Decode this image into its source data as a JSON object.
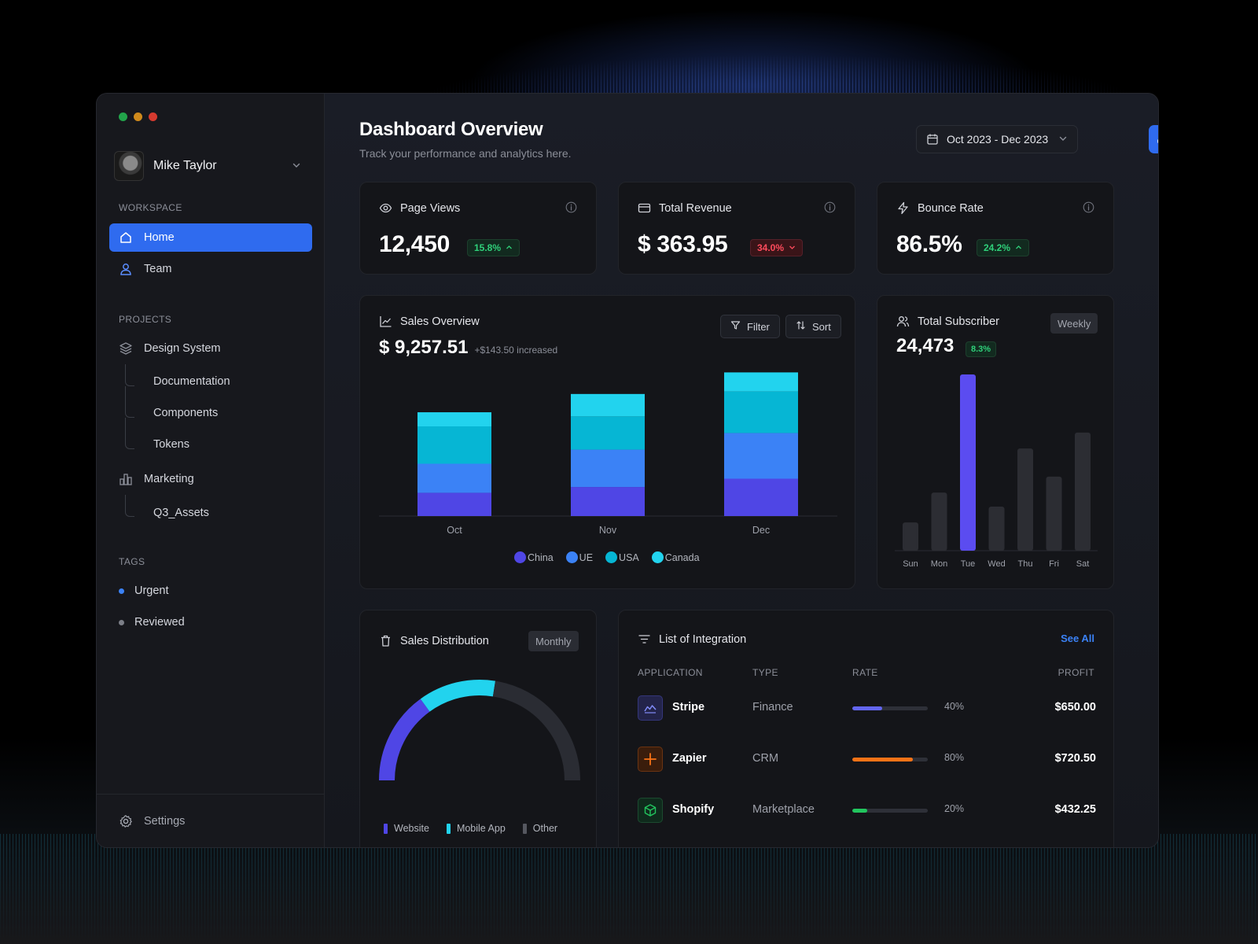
{
  "sidebar": {
    "user_name": "Mike Taylor",
    "workspace_title": "WORKSPACE",
    "workspace_items": [
      {
        "label": "Home",
        "icon": "home-icon",
        "active": true
      },
      {
        "label": "Team",
        "icon": "user-icon",
        "active": false
      }
    ],
    "projects_title": "PROJECTS",
    "projects": [
      {
        "label": "Design System",
        "icon": "layers-icon",
        "children": [
          "Documentation",
          "Components",
          "Tokens"
        ]
      },
      {
        "label": "Marketing",
        "icon": "bar-chart-icon",
        "children": [
          "Q3_Assets"
        ]
      }
    ],
    "tags_title": "TAGS",
    "tags": [
      {
        "label": "Urgent",
        "color": "#3b82f6"
      },
      {
        "label": "Reviewed",
        "color": "#7c7f88"
      }
    ],
    "settings_label": "Settings"
  },
  "header": {
    "title": "Dashboard Overview",
    "subtitle": "Track your performance and analytics here.",
    "date_range": "Oct 2023 - Dec 2023"
  },
  "stats": [
    {
      "label": "Page Views",
      "value": "12,450",
      "change": "15.8%",
      "trend": "up"
    },
    {
      "label": "Total Revenue",
      "value": "$ 363.95",
      "change": "34.0%",
      "trend": "down"
    },
    {
      "label": "Bounce Rate",
      "value": "86.5%",
      "change": "24.2%",
      "trend": "up"
    }
  ],
  "sales_overview": {
    "title": "Sales Overview",
    "value": "$ 9,257.51",
    "delta": "+$143.50 increased",
    "filter_label": "Filter",
    "sort_label": "Sort"
  },
  "subscribers": {
    "title": "Total Subscriber",
    "period": "Weekly",
    "value": "24,473",
    "change": "8.3%"
  },
  "sales_distribution": {
    "title": "Sales Distribution",
    "period": "Monthly"
  },
  "integrations": {
    "title": "List of Integration",
    "see_all": "See All",
    "columns": [
      "APPLICATION",
      "TYPE",
      "RATE",
      "PROFIT"
    ],
    "rows": [
      {
        "app": "Stripe",
        "type": "Finance",
        "rate": "40%",
        "rate_value": 0.4,
        "profit": "$650.00",
        "color": "#6366f1",
        "icon": "stripe-chart-icon"
      },
      {
        "app": "Zapier",
        "type": "CRM",
        "rate": "80%",
        "rate_value": 0.8,
        "profit": "$720.50",
        "color": "#f97316",
        "icon": "zapier-asterisk-icon"
      },
      {
        "app": "Shopify",
        "type": "Marketplace",
        "rate": "20%",
        "rate_value": 0.2,
        "profit": "$432.25",
        "color": "#22c55e",
        "icon": "shopify-box-icon"
      }
    ]
  },
  "colors": {
    "accent": "#2f6bef",
    "china": "#4f46e5",
    "ue": "#3b82f6",
    "usa": "#06b6d4",
    "canada": "#22d3ee",
    "positive": "#2fd07a",
    "negative": "#ff4b5c"
  },
  "chart_data": [
    {
      "type": "bar",
      "stacked": true,
      "categories": [
        "Oct",
        "Nov",
        "Dec"
      ],
      "series": [
        {
          "name": "China",
          "values": [
            28,
            35,
            45
          ],
          "color": "#4f46e5"
        },
        {
          "name": "UE",
          "values": [
            35,
            45,
            55
          ],
          "color": "#3b82f6"
        },
        {
          "name": "USA",
          "values": [
            45,
            40,
            50
          ],
          "color": "#06b6d4"
        },
        {
          "name": "Canada",
          "values": [
            17,
            27,
            23
          ],
          "color": "#22d3ee"
        }
      ],
      "legend_position": "bottom"
    },
    {
      "type": "bar",
      "categories": [
        "Sun",
        "Mon",
        "Tue",
        "Wed",
        "Thu",
        "Fri",
        "Sat"
      ],
      "values": [
        16,
        33,
        100,
        25,
        58,
        42,
        67
      ],
      "highlight": "Tue"
    },
    {
      "type": "pie",
      "style": "semi-donut",
      "slices": [
        {
          "name": "Website",
          "value": 30,
          "color": "#4f46e5"
        },
        {
          "name": "Mobile App",
          "value": 25,
          "color": "#22d3ee"
        },
        {
          "name": "Other",
          "value": 45,
          "color": "#2a2c33"
        }
      ],
      "legend_position": "bottom"
    }
  ]
}
